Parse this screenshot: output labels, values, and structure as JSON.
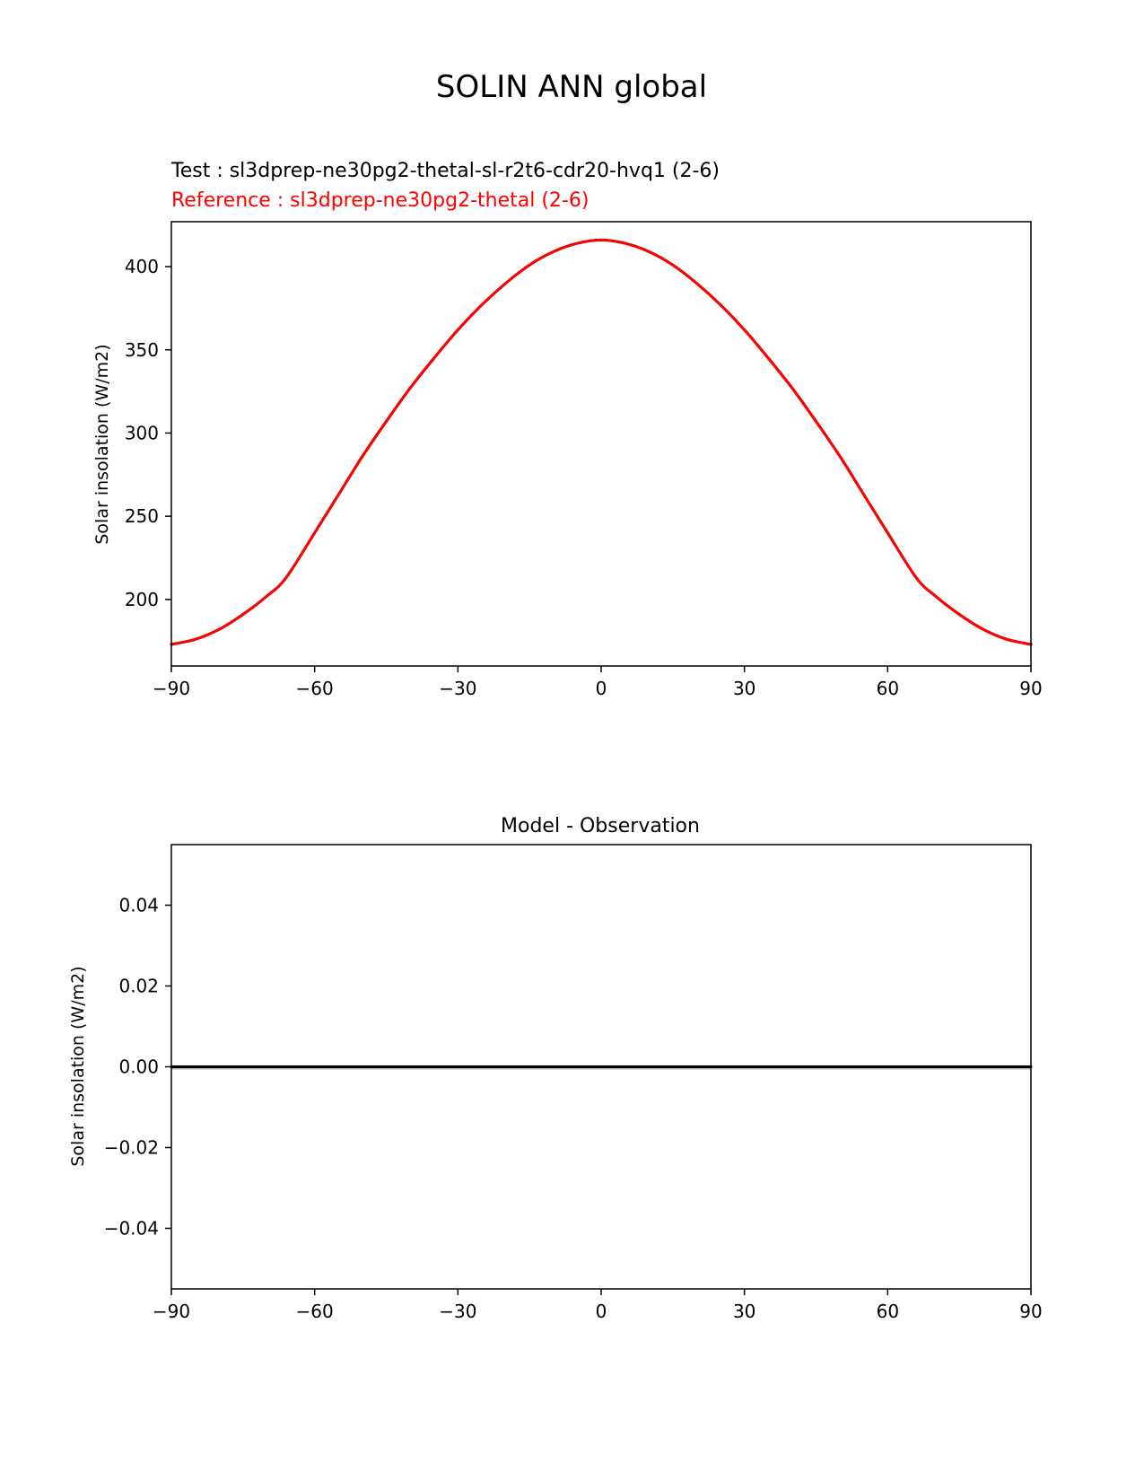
{
  "figure": {
    "title": "SOLIN ANN global"
  },
  "chart_data": [
    {
      "type": "line",
      "test_label": "Test : sl3dprep-ne30pg2-thetal-sl-r2t6-cdr20-hvq1 (2-6)",
      "reference_label": "Reference : sl3dprep-ne30pg2-thetal (2-6)",
      "title": "",
      "xlabel": "",
      "ylabel": "Solar insolation (W/m2)",
      "xlim": [
        -90,
        90
      ],
      "ylim": [
        160,
        427
      ],
      "xticks": [
        -90,
        -60,
        -30,
        0,
        30,
        60,
        90
      ],
      "xtick_labels": [
        "−90",
        "−60",
        "−30",
        "0",
        "30",
        "60",
        "90"
      ],
      "yticks": [
        200,
        250,
        300,
        350,
        400
      ],
      "ytick_labels": [
        "200",
        "250",
        "300",
        "350",
        "400"
      ],
      "series": [
        {
          "name": "Test : sl3dprep-ne30pg2-thetal-sl-r2t6-cdr20-hvq1 (2-6)",
          "color": "#000000",
          "x": [
            -90,
            -85,
            -80,
            -75,
            -70,
            -66,
            -60,
            -55,
            -50,
            -45,
            -40,
            -35,
            -30,
            -25,
            -20,
            -15,
            -10,
            -5,
            0,
            5,
            10,
            15,
            20,
            25,
            30,
            35,
            40,
            45,
            50,
            55,
            60,
            66,
            70,
            75,
            80,
            85,
            90
          ],
          "y": [
            173,
            176,
            182,
            191,
            202,
            213,
            240,
            263,
            286,
            307,
            327,
            345,
            362,
            377,
            390,
            401,
            409,
            414,
            416,
            414,
            409,
            401,
            390,
            377,
            362,
            345,
            327,
            307,
            286,
            263,
            240,
            213,
            202,
            191,
            182,
            176,
            173
          ]
        },
        {
          "name": "Reference : sl3dprep-ne30pg2-thetal (2-6)",
          "color": "#ff0000",
          "x": [
            -90,
            -85,
            -80,
            -75,
            -70,
            -66,
            -60,
            -55,
            -50,
            -45,
            -40,
            -35,
            -30,
            -25,
            -20,
            -15,
            -10,
            -5,
            0,
            5,
            10,
            15,
            20,
            25,
            30,
            35,
            40,
            45,
            50,
            55,
            60,
            66,
            70,
            75,
            80,
            85,
            90
          ],
          "y": [
            173,
            176,
            182,
            191,
            202,
            213,
            240,
            263,
            286,
            307,
            327,
            345,
            362,
            377,
            390,
            401,
            409,
            414,
            416,
            414,
            409,
            401,
            390,
            377,
            362,
            345,
            327,
            307,
            286,
            263,
            240,
            213,
            202,
            191,
            182,
            176,
            173
          ]
        }
      ]
    },
    {
      "type": "line",
      "title": "Model - Observation",
      "xlabel": "",
      "ylabel": "Solar insolation (W/m2)",
      "xlim": [
        -90,
        90
      ],
      "ylim": [
        -0.055,
        0.055
      ],
      "xticks": [
        -90,
        -60,
        -30,
        0,
        30,
        60,
        90
      ],
      "xtick_labels": [
        "−90",
        "−60",
        "−30",
        "0",
        "30",
        "60",
        "90"
      ],
      "yticks": [
        -0.04,
        -0.02,
        0.0,
        0.02,
        0.04
      ],
      "ytick_labels": [
        "−0.04",
        "−0.02",
        "0.00",
        "0.02",
        "0.04"
      ],
      "series": [
        {
          "color": "#000000",
          "x": [
            -90,
            90
          ],
          "y": [
            0,
            0
          ]
        }
      ],
      "zero_line_color": "#b0b0b0"
    }
  ]
}
